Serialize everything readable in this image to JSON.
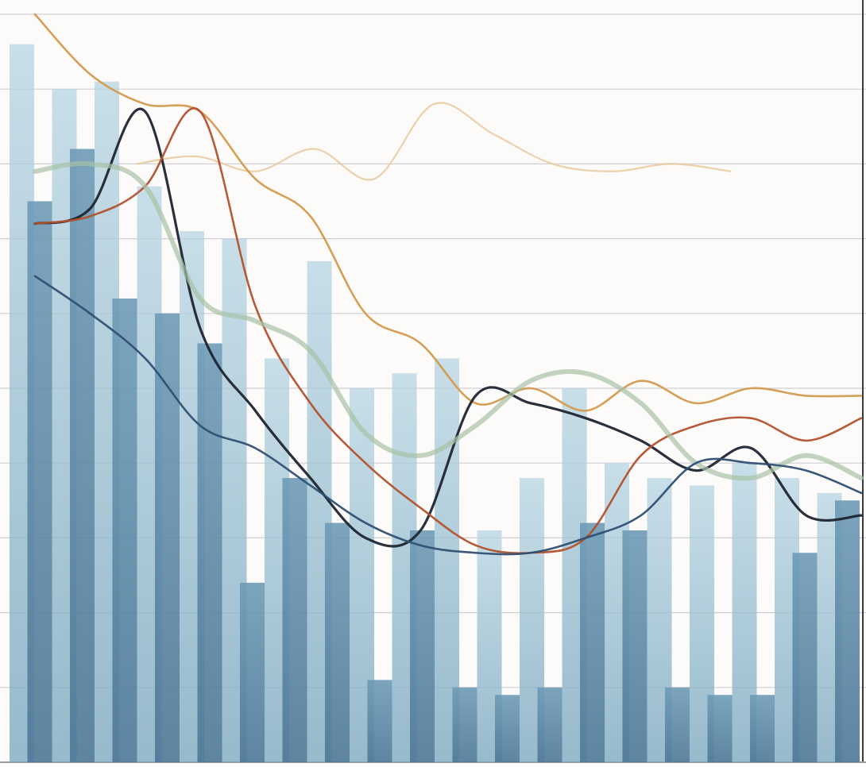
{
  "chart_data": {
    "type": "bar",
    "title": "",
    "xlabel": "",
    "ylabel": "",
    "ylim": [
      0,
      100
    ],
    "grid": true,
    "legend": "none",
    "bar_series": [
      {
        "color": "#8bb8cd",
        "values": [
          96,
          90,
          91,
          77,
          71,
          70,
          54,
          67,
          50,
          52,
          54,
          31,
          38,
          50,
          40,
          38,
          37,
          40,
          38,
          36
        ]
      },
      {
        "color": "#5f8fad",
        "values": [
          75,
          82,
          62,
          60,
          56,
          24,
          38,
          32,
          11,
          31,
          10,
          9,
          10,
          32,
          31,
          10,
          9,
          9,
          28,
          35
        ]
      }
    ],
    "line_series": [
      {
        "color": "#d39a4e",
        "values": [
          100,
          92,
          88,
          87,
          78,
          73,
          60,
          56,
          48,
          50,
          47,
          51,
          48,
          50,
          49,
          49
        ]
      },
      {
        "color": "#1f2530",
        "values": [
          72,
          74,
          87,
          58,
          47,
          38,
          30,
          31,
          49,
          48,
          46,
          43,
          39,
          42,
          33,
          33
        ]
      },
      {
        "color": "#b2522e",
        "values": [
          72,
          73,
          77,
          87,
          61,
          48,
          40,
          34,
          29,
          28,
          30,
          41,
          45,
          46,
          43,
          46
        ]
      },
      {
        "color": "#a7c2a5",
        "values": [
          79,
          80,
          77,
          62,
          59,
          55,
          44,
          41,
          45,
          51,
          52,
          48,
          40,
          38,
          41,
          38
        ]
      },
      {
        "color": "#2f4f74",
        "values": [
          65,
          60,
          54,
          45,
          42,
          37,
          32,
          29,
          28,
          28,
          30,
          33,
          40,
          40,
          39,
          36
        ]
      }
    ],
    "faint_series": [
      {
        "color": "#e7c99a",
        "values": [
          80,
          81,
          79,
          82,
          78,
          88,
          84,
          80,
          79,
          80,
          79
        ]
      }
    ],
    "colors": {
      "background": "#fdfbfa",
      "grid": "#cfcfd3",
      "axis": "#9a9aa0"
    }
  }
}
